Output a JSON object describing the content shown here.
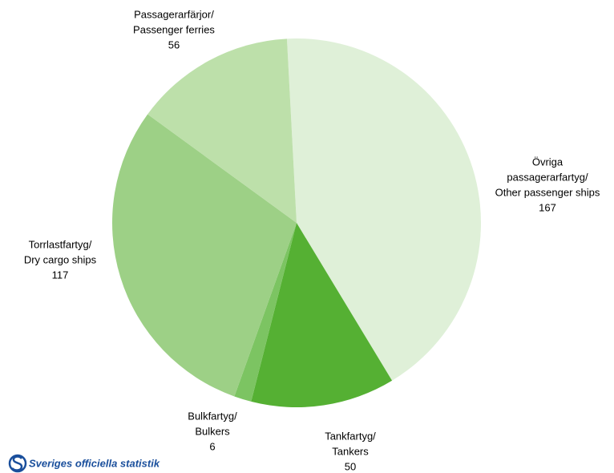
{
  "chart_data": {
    "type": "pie",
    "categories": [
      [
        "Övriga",
        "passagerarfartyg/",
        "Other passenger ships"
      ],
      [
        "Tankfartyg/",
        "Tankers"
      ],
      [
        "Bulkfartyg/",
        "Bulkers"
      ],
      [
        "Torrlastfartyg/",
        "Dry cargo ships"
      ],
      [
        "Passagerarfärjor/",
        "Passenger ferries"
      ]
    ],
    "values": [
      167,
      50,
      6,
      117,
      56
    ],
    "colors": [
      "#dff0d8",
      "#55b033",
      "#7cc462",
      "#9dd086",
      "#bde0aa"
    ],
    "source": "Sveriges officiella statistik"
  }
}
